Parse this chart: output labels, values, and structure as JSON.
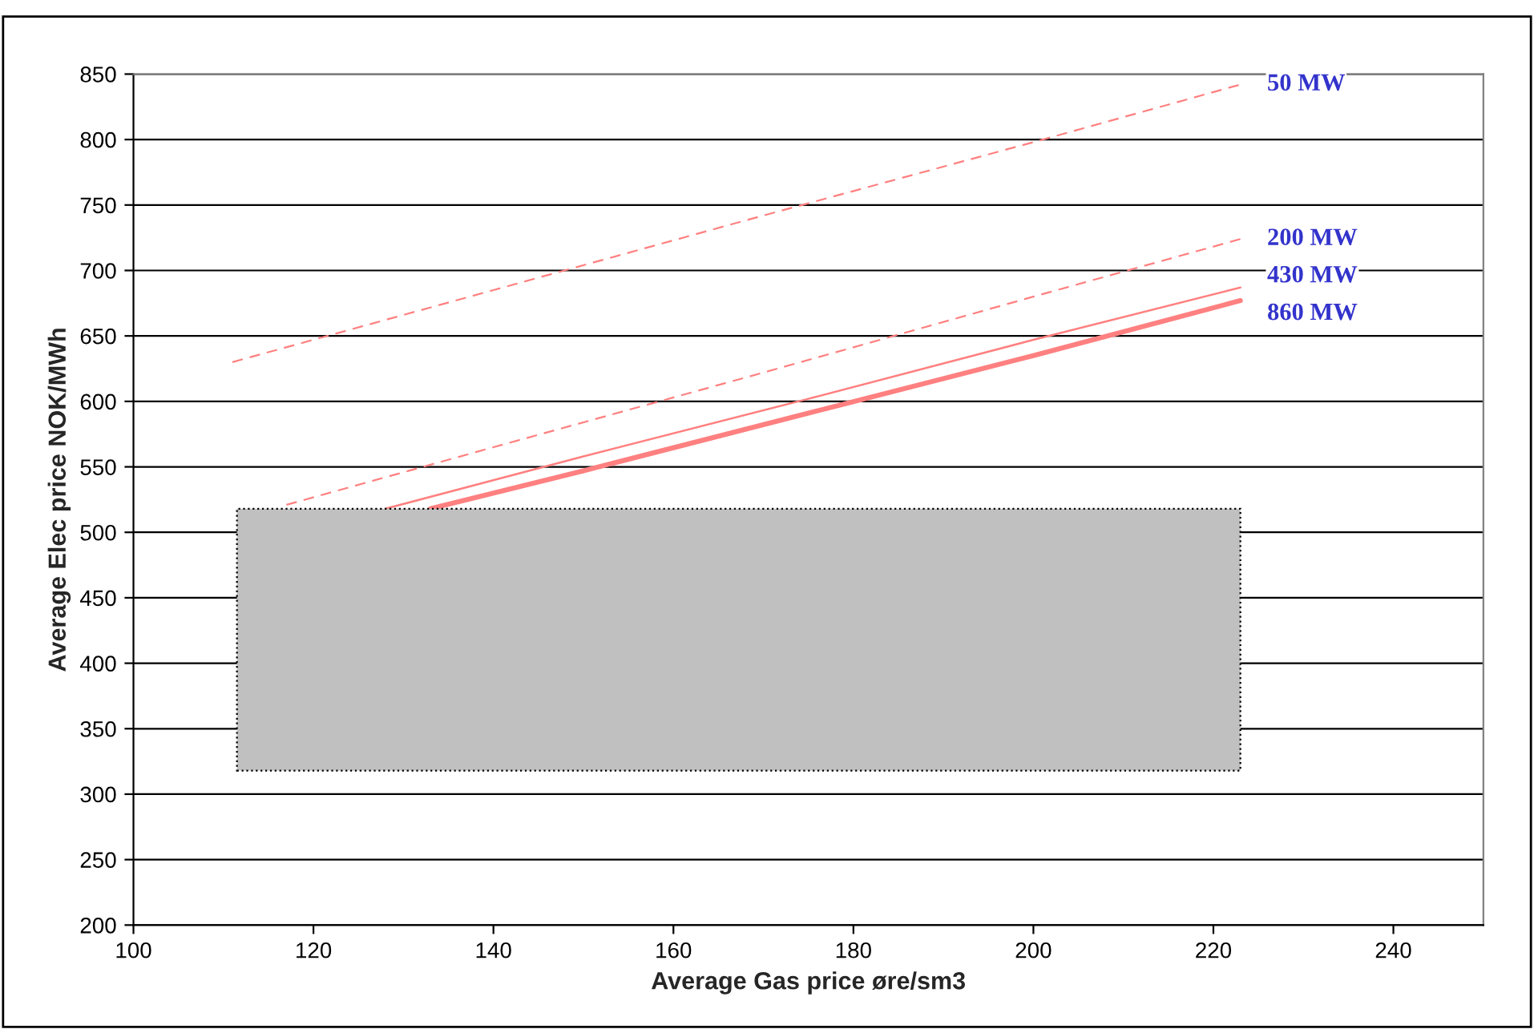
{
  "chart_data": {
    "type": "line",
    "xlabel": "Average Gas price øre/sm3",
    "ylabel": "Average Elec price NOK/MWh",
    "xlim": [
      100,
      250
    ],
    "xticks": [
      100,
      120,
      140,
      160,
      180,
      200,
      220,
      240
    ],
    "ylim": [
      200,
      850
    ],
    "yticks": [
      200,
      250,
      300,
      350,
      400,
      450,
      500,
      550,
      600,
      650,
      700,
      750,
      800,
      850
    ],
    "grid": "y",
    "legend": false,
    "marker": "none",
    "series": [
      {
        "name": "50 MW",
        "color": "#ff8080",
        "line_style": "dashed",
        "x": [
          111,
          140,
          170,
          200,
          223
        ],
        "values": [
          630,
          685,
          742,
          798,
          842
        ]
      },
      {
        "name": "200 MW",
        "color": "#ff8080",
        "line_style": "dashed",
        "x": [
          117,
          140,
          170,
          200,
          223
        ],
        "values": [
          521,
          565,
          622,
          680,
          724
        ]
      },
      {
        "name": "430 MW",
        "color": "#ff8080",
        "line_style": "solid",
        "x": [
          128,
          150,
          175,
          200,
          223
        ],
        "values": [
          518,
          558,
          602,
          647,
          687
        ]
      },
      {
        "name": "860 MW",
        "color": "#ff8080",
        "line_style": "solid",
        "x": [
          133,
          150,
          175,
          200,
          223
        ],
        "values": [
          518,
          547,
          591,
          635,
          677
        ]
      }
    ]
  }
}
